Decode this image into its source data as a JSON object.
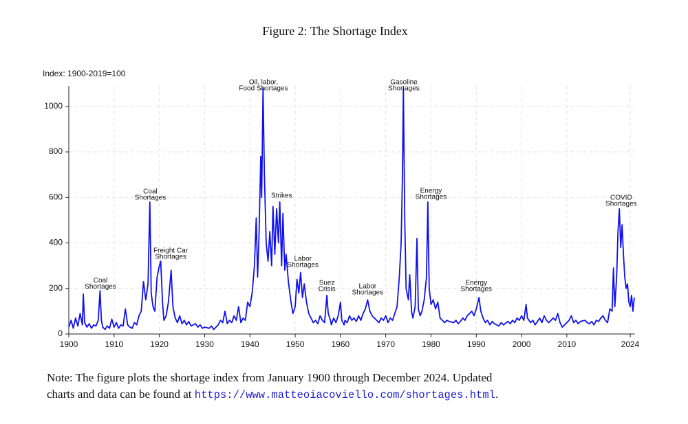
{
  "chart_data": {
    "type": "line",
    "title": "Figure 2: The Shortage Index",
    "ylabel": "Index: 1900-2019=100",
    "xlim": [
      1900,
      2025
    ],
    "ylim": [
      0,
      1090
    ],
    "xticks": [
      1900,
      1910,
      1920,
      1930,
      1940,
      1950,
      1960,
      1970,
      1980,
      1990,
      2000,
      2010,
      2024
    ],
    "yticks": [
      0,
      200,
      400,
      600,
      800,
      1000
    ],
    "grid": true,
    "x": [
      1900,
      1900.5,
      1901,
      1901.5,
      1902,
      1902.5,
      1903,
      1903.2,
      1903.5,
      1904,
      1904.5,
      1905,
      1905.5,
      1906,
      1906.5,
      1906.9,
      1907.2,
      1907.5,
      1908,
      1908.5,
      1909,
      1909.5,
      1910,
      1910.5,
      1911,
      1911.5,
      1912,
      1912.5,
      1913,
      1913.5,
      1914,
      1914.5,
      1915,
      1915.5,
      1916,
      1916.5,
      1917,
      1917.5,
      1917.9,
      1918.2,
      1918.6,
      1919,
      1919.5,
      1920,
      1920.3,
      1920.7,
      1921,
      1921.5,
      1922,
      1922.6,
      1923,
      1923.5,
      1924,
      1924.5,
      1925,
      1925.5,
      1926,
      1926.5,
      1927,
      1928,
      1928.5,
      1929,
      1929.5,
      1930,
      1931,
      1931.5,
      1932,
      1932.5,
      1933,
      1933.5,
      1934,
      1934.5,
      1935,
      1935.5,
      1936,
      1936.5,
      1937,
      1937.5,
      1938,
      1938.5,
      1939,
      1939.5,
      1940,
      1940.5,
      1941,
      1941.4,
      1941.7,
      1942,
      1942.4,
      1942.6,
      1942.9,
      1943.2,
      1943.6,
      1944,
      1944.4,
      1944.8,
      1945.1,
      1945.5,
      1945.9,
      1946.3,
      1946.6,
      1947,
      1947.3,
      1947.7,
      1948,
      1948.5,
      1949,
      1949.5,
      1950,
      1950.4,
      1950.8,
      1951.2,
      1951.6,
      1952,
      1952.5,
      1953,
      1953.5,
      1954,
      1954.5,
      1955,
      1955.5,
      1956,
      1956.5,
      1957,
      1957.3,
      1957.8,
      1958,
      1958.5,
      1959,
      1959.5,
      1960,
      1960.3,
      1960.8,
      1961,
      1961.5,
      1962,
      1962.5,
      1963,
      1963.5,
      1964,
      1964.5,
      1965,
      1965.5,
      1966,
      1966.5,
      1967,
      1967.5,
      1968,
      1968.5,
      1969,
      1969.5,
      1970,
      1970.5,
      1971,
      1971.5,
      1972,
      1972.5,
      1973,
      1973.4,
      1973.7,
      1973.9,
      1974.2,
      1974.5,
      1975,
      1975.3,
      1975.7,
      1976,
      1976.5,
      1976.9,
      1977.2,
      1977.6,
      1978,
      1978.5,
      1979,
      1979.3,
      1979.6,
      1980,
      1980.5,
      1981,
      1981.5,
      1982,
      1982.5,
      1983,
      1983.5,
      1984,
      1985,
      1985.5,
      1986,
      1986.5,
      1987,
      1987.5,
      1988,
      1988.5,
      1989,
      1989.5,
      1990,
      1990.6,
      1991,
      1991.5,
      1992,
      1992.5,
      1993,
      1993.5,
      1994,
      1995,
      1995.5,
      1996,
      1997,
      1997.5,
      1998,
      1998.5,
      1999,
      1999.5,
      2000,
      2000.5,
      2001,
      2001.3,
      2002,
      2002.5,
      2003,
      2003.5,
      2004,
      2004.5,
      2005,
      2005.5,
      2006,
      2007,
      2007.5,
      2008,
      2008.5,
      2009,
      2009.5,
      2010,
      2010.5,
      2011,
      2011.5,
      2012,
      2012.5,
      2013,
      2014,
      2014.5,
      2015,
      2015.5,
      2016,
      2016.5,
      2017,
      2017.5,
      2018,
      2018.5,
      2019,
      2019.5,
      2020,
      2020.3,
      2020.6,
      2021,
      2021.3,
      2021.6,
      2021.9,
      2022.2,
      2022.5,
      2022.8,
      2023.1,
      2023.4,
      2023.7,
      2024,
      2024.3,
      2024.6,
      2024.9
    ],
    "series": [
      {
        "name": "Shortage Index",
        "color": "#1010ee",
        "values": [
          30,
          60,
          25,
          70,
          35,
          90,
          40,
          175,
          50,
          30,
          45,
          25,
          40,
          35,
          60,
          190,
          60,
          30,
          20,
          35,
          25,
          65,
          30,
          50,
          25,
          40,
          35,
          110,
          40,
          30,
          25,
          50,
          40,
          80,
          100,
          230,
          150,
          220,
          580,
          180,
          120,
          100,
          250,
          300,
          320,
          140,
          60,
          80,
          140,
          280,
          120,
          70,
          50,
          80,
          45,
          60,
          40,
          55,
          35,
          45,
          30,
          40,
          25,
          30,
          25,
          35,
          20,
          30,
          40,
          60,
          50,
          100,
          45,
          60,
          50,
          80,
          60,
          120,
          50,
          70,
          60,
          140,
          120,
          180,
          300,
          510,
          250,
          420,
          780,
          600,
          1080,
          700,
          400,
          320,
          450,
          300,
          560,
          350,
          550,
          400,
          580,
          300,
          530,
          280,
          350,
          230,
          150,
          90,
          120,
          240,
          180,
          270,
          160,
          220,
          140,
          90,
          70,
          50,
          60,
          45,
          80,
          60,
          50,
          170,
          90,
          60,
          40,
          70,
          50,
          80,
          140,
          60,
          40,
          60,
          50,
          80,
          60,
          70,
          55,
          80,
          60,
          90,
          110,
          150,
          100,
          80,
          70,
          60,
          50,
          70,
          60,
          80,
          50,
          70,
          60,
          90,
          120,
          250,
          400,
          700,
          1080,
          500,
          200,
          150,
          260,
          100,
          70,
          120,
          420,
          110,
          80,
          100,
          150,
          250,
          580,
          200,
          130,
          150,
          110,
          140,
          70,
          60,
          50,
          60,
          55,
          50,
          60,
          45,
          55,
          70,
          60,
          80,
          90,
          100,
          80,
          110,
          160,
          100,
          70,
          50,
          60,
          40,
          55,
          45,
          35,
          50,
          40,
          55,
          45,
          60,
          50,
          70,
          60,
          80,
          60,
          130,
          70,
          50,
          60,
          40,
          55,
          70,
          50,
          80,
          60,
          50,
          70,
          60,
          90,
          50,
          30,
          40,
          50,
          60,
          80,
          50,
          60,
          45,
          55,
          60,
          50,
          45,
          55,
          40,
          60,
          55,
          70,
          80,
          60,
          50,
          110,
          100,
          290,
          120,
          250,
          450,
          550,
          380,
          480,
          350,
          250,
          200,
          220,
          140,
          120,
          170,
          100,
          160
        ]
      }
    ],
    "annotations": [
      {
        "lines": [
          "Coal",
          "Shortages"
        ],
        "x": 1907,
        "y": 208
      },
      {
        "lines": [
          "Coal",
          "Shortages"
        ],
        "x": 1918,
        "y": 598
      },
      {
        "lines": [
          "Freight Car",
          "Shortages"
        ],
        "x": 1922.5,
        "y": 338
      },
      {
        "lines": [
          "Oil, labor,",
          "Food Shortages"
        ],
        "x": 1943,
        "y": 1078
      },
      {
        "lines": [
          "Strikes"
        ],
        "x": 1947,
        "y": 607
      },
      {
        "lines": [
          "Labor",
          "Shortages"
        ],
        "x": 1951.7,
        "y": 302
      },
      {
        "lines": [
          "Suez",
          "Crisis"
        ],
        "x": 1957,
        "y": 196
      },
      {
        "lines": [
          "Labor",
          "Shortages"
        ],
        "x": 1966,
        "y": 181
      },
      {
        "lines": [
          "Gasoline",
          "Shortages"
        ],
        "x": 1974,
        "y": 1078
      },
      {
        "lines": [
          "Energy",
          "Shortages"
        ],
        "x": 1980,
        "y": 601
      },
      {
        "lines": [
          "Energy",
          "Shortages"
        ],
        "x": 1990,
        "y": 196
      },
      {
        "lines": [
          "COVID",
          "Shortages"
        ],
        "x": 2022,
        "y": 571
      }
    ]
  },
  "note": {
    "line1": "Note: The figure plots the shortage index from January 1900 through December 2024. Updated",
    "line2": "charts and data can be found at ",
    "link": "https://www.matteoiacoviello.com/shortages.html",
    "end": "."
  }
}
